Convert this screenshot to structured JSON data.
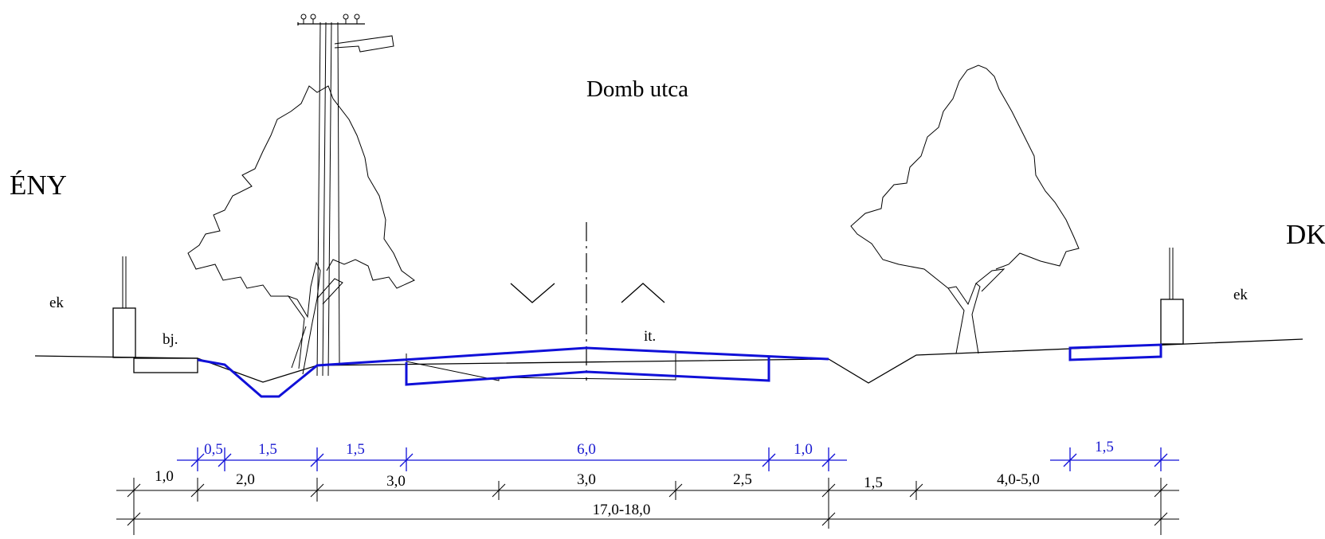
{
  "title": "Domb utca",
  "direction_left": "ÉNY",
  "direction_right": "DK",
  "labels": {
    "ek_left": "ek",
    "ek_right": "ek",
    "bj": "bj.",
    "it": "it."
  },
  "dimensions": {
    "blue_row": [
      "0,5",
      "1,5",
      "1,5",
      "6,0",
      "1,0",
      "1,5"
    ],
    "black_row": [
      "1,0",
      "2,0",
      "3,0",
      "3,0",
      "2,5",
      "1,5",
      "4,0-5,0"
    ],
    "total": "17,0-18,0"
  },
  "colors": {
    "design": "#1010d8",
    "existing": "#000000"
  }
}
